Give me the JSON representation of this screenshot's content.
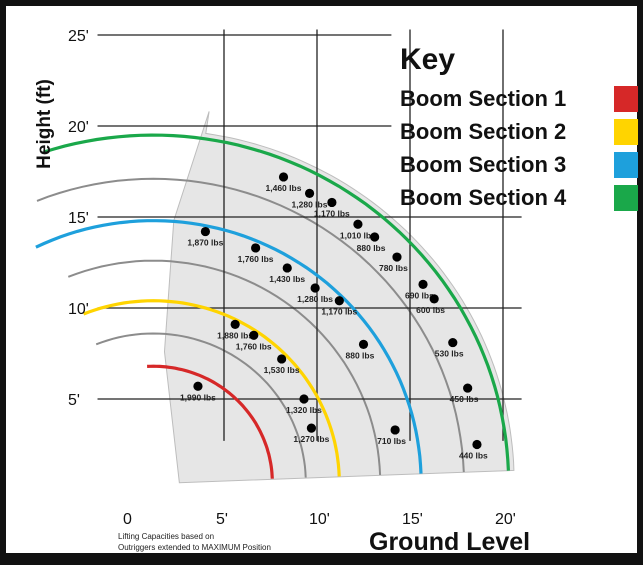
{
  "chart_data": {
    "type": "scatter",
    "ylabel": "Height (ft)",
    "xlabel": "Ground Level",
    "note_lines": [
      "Lifting Capacities based on",
      "Outriggers extended to MAXIMUM Position"
    ],
    "xlim": [
      0,
      20
    ],
    "ylim": [
      0,
      25
    ],
    "x_ticks": [
      {
        "v": 0,
        "label": "0"
      },
      {
        "v": 5,
        "label": "5'"
      },
      {
        "v": 10,
        "label": "10'"
      },
      {
        "v": 15,
        "label": "15'"
      },
      {
        "v": 20,
        "label": "20'"
      }
    ],
    "y_ticks": [
      {
        "v": 5,
        "label": "5'"
      },
      {
        "v": 10,
        "label": "10'"
      },
      {
        "v": 15,
        "label": "15'"
      },
      {
        "v": 20,
        "label": "20'"
      },
      {
        "v": 25,
        "label": "25'"
      }
    ],
    "grid": true,
    "legend": {
      "title": "Key",
      "position": "top-right",
      "items": [
        {
          "name": "Boom Section 1",
          "color": "#d62828"
        },
        {
          "name": "Boom Section 2",
          "color": "#ffd400"
        },
        {
          "name": "Boom Section 3",
          "color": "#1ea0dc"
        },
        {
          "name": "Boom Section 4",
          "color": "#1aa84a"
        }
      ]
    },
    "series": [
      {
        "name": "Boom Section 1",
        "color": "#d62828",
        "radius": 6.4,
        "points": [
          {
            "x": 3.6,
            "y": 5.7,
            "label": "1,990 lbs"
          }
        ]
      },
      {
        "name": "Boom Section 2",
        "color": "#ffd400",
        "radius": 10,
        "points": [
          {
            "x": 5.6,
            "y": 9.1,
            "label": "1,880 lbs"
          },
          {
            "x": 6.6,
            "y": 8.5,
            "label": "1,760 lbs"
          },
          {
            "x": 8.1,
            "y": 7.2,
            "label": "1,530 lbs"
          },
          {
            "x": 9.3,
            "y": 5.0,
            "label": "1,320 lbs"
          },
          {
            "x": 9.7,
            "y": 3.4,
            "label": "1,270 lbs"
          }
        ]
      },
      {
        "name": "Boom Section 3",
        "color": "#1ea0dc",
        "radius": 14.4,
        "points": [
          {
            "x": 4.0,
            "y": 14.2,
            "label": "1,870 lbs"
          },
          {
            "x": 6.7,
            "y": 13.3,
            "label": "1,760 lbs"
          },
          {
            "x": 8.4,
            "y": 12.2,
            "label": "1,430 lbs"
          },
          {
            "x": 9.9,
            "y": 11.1,
            "label": "1,280 lbs"
          },
          {
            "x": 11.2,
            "y": 10.4,
            "label": "1,170 lbs"
          },
          {
            "x": 12.5,
            "y": 8.0,
            "label": "880 lbs"
          },
          {
            "x": 14.2,
            "y": 3.3,
            "label": "710 lbs"
          }
        ]
      },
      {
        "name": "Boom Section 4",
        "color": "#1aa84a",
        "radius": 19.1,
        "points": [
          {
            "x": 8.2,
            "y": 17.2,
            "label": "1,460 lbs"
          },
          {
            "x": 9.6,
            "y": 16.3,
            "label": "1,280 lbs"
          },
          {
            "x": 10.8,
            "y": 15.8,
            "label": "1,170 lbs"
          },
          {
            "x": 12.2,
            "y": 14.6,
            "label": "1,010 lbs"
          },
          {
            "x": 13.1,
            "y": 13.9,
            "label": "880 lbs"
          },
          {
            "x": 14.3,
            "y": 12.8,
            "label": "780 lbs"
          },
          {
            "x": 15.7,
            "y": 11.3,
            "label": "690 lbs"
          },
          {
            "x": 16.3,
            "y": 10.5,
            "label": "600 lbs"
          },
          {
            "x": 17.3,
            "y": 8.1,
            "label": "530 lbs"
          },
          {
            "x": 18.1,
            "y": 5.6,
            "label": "450 lbs"
          },
          {
            "x": 18.6,
            "y": 2.5,
            "label": "440 lbs"
          }
        ]
      }
    ]
  }
}
